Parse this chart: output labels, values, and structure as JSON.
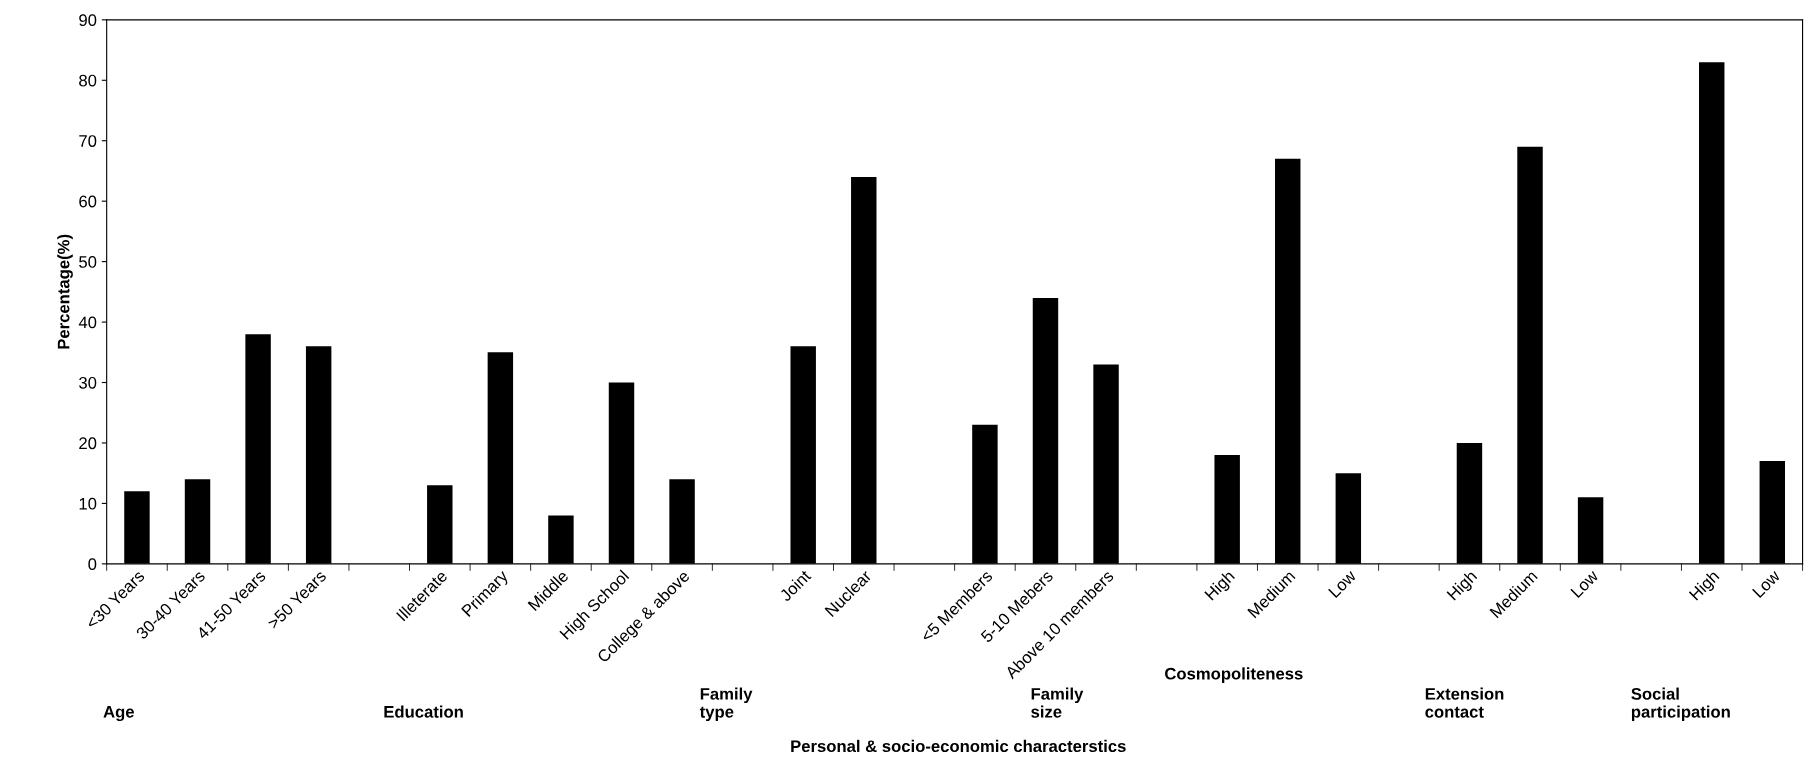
{
  "chart_data": {
    "type": "bar",
    "xlabel": "Personal & socio-economic characterstics",
    "ylabel": "Percentage(%)",
    "categories": [
      "<30 Years",
      "30-40 Years",
      "41-50 Years",
      ">50 Years",
      null,
      "Illeterate",
      "Primary",
      "Middle",
      "High School",
      "College & above",
      null,
      "Joint",
      "Nuclear",
      null,
      "<5 Members",
      "5-10 Mebers",
      "Above 10 members",
      null,
      "High",
      "Medium",
      "Low",
      null,
      "High",
      "Medium",
      "Low",
      null,
      "High",
      "Low"
    ],
    "values": [
      12,
      14,
      38,
      36,
      null,
      13,
      35,
      8,
      30,
      14,
      null,
      36,
      64,
      null,
      23,
      44,
      33,
      null,
      18,
      67,
      15,
      null,
      20,
      69,
      11,
      null,
      83,
      17
    ],
    "color": "#000000",
    "ylim": [
      0,
      90
    ],
    "yticks": [
      0,
      10,
      20,
      30,
      40,
      50,
      60,
      70,
      80,
      90
    ],
    "grid": false,
    "legend": false,
    "annotations": [
      "Age",
      "Education",
      "Family\ntype",
      "Family\nsize",
      "Cosmopoliteness",
      "Extension\ncontact",
      "Social\nparticipation"
    ]
  }
}
